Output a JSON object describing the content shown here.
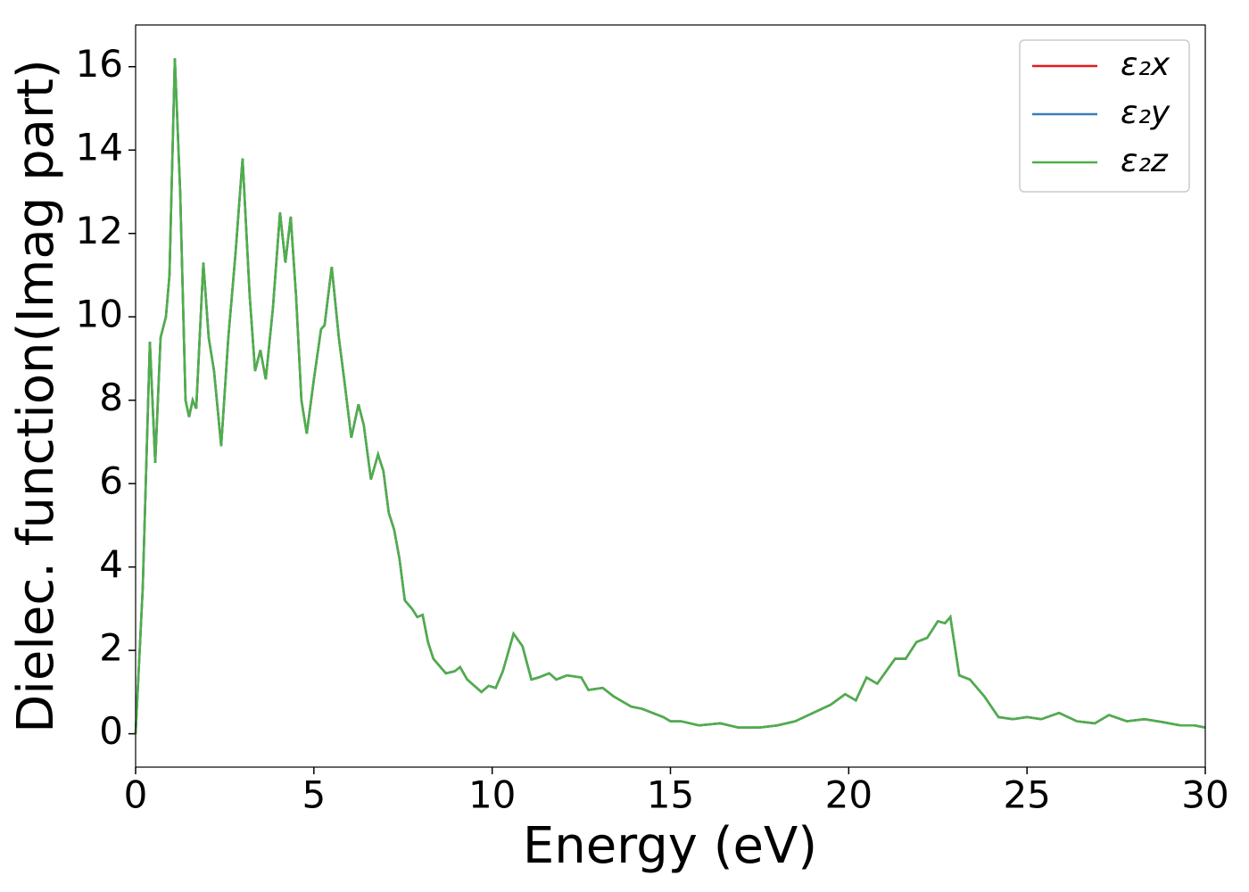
{
  "chart_data": {
    "type": "line",
    "x_label": "Energy (eV)",
    "y_label": "Dielec. function(Imag part)",
    "x": [
      0,
      0.2,
      0.4,
      0.55,
      0.7,
      0.85,
      0.95,
      1.1,
      1.25,
      1.4,
      1.5,
      1.6,
      1.7,
      1.9,
      2.05,
      2.2,
      2.4,
      2.6,
      2.8,
      3.0,
      3.2,
      3.35,
      3.5,
      3.65,
      3.85,
      4.05,
      4.2,
      4.35,
      4.5,
      4.65,
      4.8,
      5.0,
      5.2,
      5.3,
      5.5,
      5.7,
      5.85,
      6.05,
      6.25,
      6.4,
      6.6,
      6.8,
      6.95,
      7.1,
      7.25,
      7.4,
      7.55,
      7.75,
      7.9,
      8.05,
      8.2,
      8.35,
      8.7,
      8.95,
      9.1,
      9.3,
      9.7,
      9.9,
      10.1,
      10.3,
      10.6,
      10.85,
      11.1,
      11.3,
      11.6,
      11.8,
      12.1,
      12.5,
      12.7,
      13.1,
      13.4,
      13.9,
      14.2,
      14.8,
      15.0,
      15.3,
      15.8,
      16.4,
      16.9,
      17.5,
      18.0,
      18.5,
      19.0,
      19.5,
      19.9,
      20.2,
      20.5,
      20.8,
      21.3,
      21.6,
      21.9,
      22.2,
      22.5,
      22.7,
      22.85,
      23.1,
      23.4,
      23.8,
      24.2,
      24.6,
      25.0,
      25.4,
      25.9,
      26.4,
      26.9,
      27.3,
      27.8,
      28.3,
      28.8,
      29.3,
      29.7,
      30
    ],
    "series": [
      {
        "name": "ε₂x",
        "color": "#e41a1c",
        "values": [
          0,
          3.5,
          9.4,
          6.5,
          9.5,
          10.0,
          11,
          16.2,
          13,
          8,
          7.6,
          8.0,
          7.8,
          11.3,
          9.5,
          8.7,
          6.9,
          9.5,
          11.5,
          13.8,
          10.5,
          8.7,
          9.2,
          8.5,
          10.2,
          12.5,
          11.3,
          12.4,
          10.5,
          8.0,
          7.2,
          8.5,
          9.7,
          9.8,
          11.2,
          9.5,
          8.5,
          7.1,
          7.9,
          7.4,
          6.1,
          6.7,
          6.3,
          5.3,
          4.9,
          4.2,
          3.2,
          3.0,
          2.8,
          2.85,
          2.2,
          1.8,
          1.45,
          1.5,
          1.6,
          1.3,
          1.0,
          1.15,
          1.1,
          1.5,
          2.4,
          2.1,
          1.3,
          1.35,
          1.45,
          1.3,
          1.4,
          1.35,
          1.05,
          1.1,
          0.9,
          0.65,
          0.6,
          0.4,
          0.3,
          0.3,
          0.2,
          0.25,
          0.15,
          0.15,
          0.2,
          0.3,
          0.5,
          0.7,
          0.95,
          0.8,
          1.35,
          1.2,
          1.8,
          1.8,
          2.2,
          2.3,
          2.7,
          2.65,
          2.8,
          1.4,
          1.3,
          0.9,
          0.4,
          0.35,
          0.4,
          0.35,
          0.5,
          0.3,
          0.25,
          0.45,
          0.3,
          0.35,
          0.28,
          0.2,
          0.2,
          0.15
        ]
      },
      {
        "name": "ε₂y",
        "color": "#377eb8",
        "values": [
          0,
          3.5,
          9.4,
          6.5,
          9.5,
          10.0,
          11,
          16.2,
          13,
          8,
          7.6,
          8.0,
          7.8,
          11.3,
          9.5,
          8.7,
          6.9,
          9.5,
          11.5,
          13.8,
          10.5,
          8.7,
          9.2,
          8.5,
          10.2,
          12.5,
          11.3,
          12.4,
          10.5,
          8.0,
          7.2,
          8.5,
          9.7,
          9.8,
          11.2,
          9.5,
          8.5,
          7.1,
          7.9,
          7.4,
          6.1,
          6.7,
          6.3,
          5.3,
          4.9,
          4.2,
          3.2,
          3.0,
          2.8,
          2.85,
          2.2,
          1.8,
          1.45,
          1.5,
          1.6,
          1.3,
          1.0,
          1.15,
          1.1,
          1.5,
          2.4,
          2.1,
          1.3,
          1.35,
          1.45,
          1.3,
          1.4,
          1.35,
          1.05,
          1.1,
          0.9,
          0.65,
          0.6,
          0.4,
          0.3,
          0.3,
          0.2,
          0.25,
          0.15,
          0.15,
          0.2,
          0.3,
          0.5,
          0.7,
          0.95,
          0.8,
          1.35,
          1.2,
          1.8,
          1.8,
          2.2,
          2.3,
          2.7,
          2.65,
          2.8,
          1.4,
          1.3,
          0.9,
          0.4,
          0.35,
          0.4,
          0.35,
          0.5,
          0.3,
          0.25,
          0.45,
          0.3,
          0.35,
          0.28,
          0.2,
          0.2,
          0.15
        ]
      },
      {
        "name": "ε₂z",
        "color": "#4daf4a",
        "values": [
          0,
          3.5,
          9.4,
          6.5,
          9.5,
          10.0,
          11,
          16.2,
          13,
          8,
          7.6,
          8.0,
          7.8,
          11.3,
          9.5,
          8.7,
          6.9,
          9.5,
          11.5,
          13.8,
          10.5,
          8.7,
          9.2,
          8.5,
          10.2,
          12.5,
          11.3,
          12.4,
          10.5,
          8.0,
          7.2,
          8.5,
          9.7,
          9.8,
          11.2,
          9.5,
          8.5,
          7.1,
          7.9,
          7.4,
          6.1,
          6.7,
          6.3,
          5.3,
          4.9,
          4.2,
          3.2,
          3.0,
          2.8,
          2.85,
          2.2,
          1.8,
          1.45,
          1.5,
          1.6,
          1.3,
          1.0,
          1.15,
          1.1,
          1.5,
          2.4,
          2.1,
          1.3,
          1.35,
          1.45,
          1.3,
          1.4,
          1.35,
          1.05,
          1.1,
          0.9,
          0.65,
          0.6,
          0.4,
          0.3,
          0.3,
          0.2,
          0.25,
          0.15,
          0.15,
          0.2,
          0.3,
          0.5,
          0.7,
          0.95,
          0.8,
          1.35,
          1.2,
          1.8,
          1.8,
          2.2,
          2.3,
          2.7,
          2.65,
          2.8,
          1.4,
          1.3,
          0.9,
          0.4,
          0.35,
          0.4,
          0.35,
          0.5,
          0.3,
          0.25,
          0.45,
          0.3,
          0.35,
          0.28,
          0.2,
          0.2,
          0.15
        ]
      }
    ],
    "xlim": [
      0,
      30
    ],
    "xticks": [
      0,
      5,
      10,
      15,
      20,
      25,
      30
    ],
    "ylim": [
      -0.8,
      17
    ],
    "yticks": [
      0,
      2,
      4,
      6,
      8,
      10,
      12,
      14,
      16
    ],
    "legend": "upper right"
  }
}
